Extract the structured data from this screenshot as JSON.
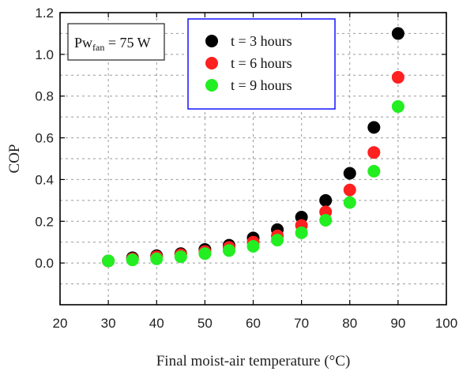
{
  "chart_data": {
    "type": "scatter",
    "title": "",
    "xlabel": "Final moist-air temperature (°C)",
    "ylabel": "COP",
    "xlim": [
      20,
      100
    ],
    "ylim": [
      -0.2,
      1.2
    ],
    "xticks": [
      20,
      30,
      40,
      50,
      60,
      70,
      80,
      90,
      100
    ],
    "yticks": [
      0.0,
      0.2,
      0.4,
      0.6,
      0.8,
      1.0,
      1.2
    ],
    "ytick_labels": [
      "0.0",
      "0.2",
      "0.4",
      "0.6",
      "0.8",
      "1.0",
      "1.2"
    ],
    "grid": true,
    "legend_position": "top-center",
    "annotation": {
      "prefix": "Pw",
      "subscript": "fan",
      "suffix": " = 75 W"
    },
    "x": [
      30,
      35,
      40,
      45,
      50,
      55,
      60,
      65,
      70,
      75,
      80,
      85,
      90
    ],
    "series": [
      {
        "name": "t = 3 hours",
        "color": "#000000",
        "values": [
          0.01,
          0.025,
          0.035,
          0.045,
          0.065,
          0.085,
          0.12,
          0.16,
          0.22,
          0.3,
          0.43,
          0.65,
          1.1
        ]
      },
      {
        "name": "t = 6 hours",
        "color": "#ff2020",
        "values": [
          0.01,
          0.02,
          0.03,
          0.04,
          0.055,
          0.075,
          0.1,
          0.13,
          0.18,
          0.245,
          0.35,
          0.53,
          0.89
        ]
      },
      {
        "name": "t = 9 hours",
        "color": "#22ee22",
        "values": [
          0.01,
          0.015,
          0.02,
          0.03,
          0.045,
          0.06,
          0.08,
          0.11,
          0.145,
          0.205,
          0.29,
          0.44,
          0.75
        ]
      }
    ]
  }
}
